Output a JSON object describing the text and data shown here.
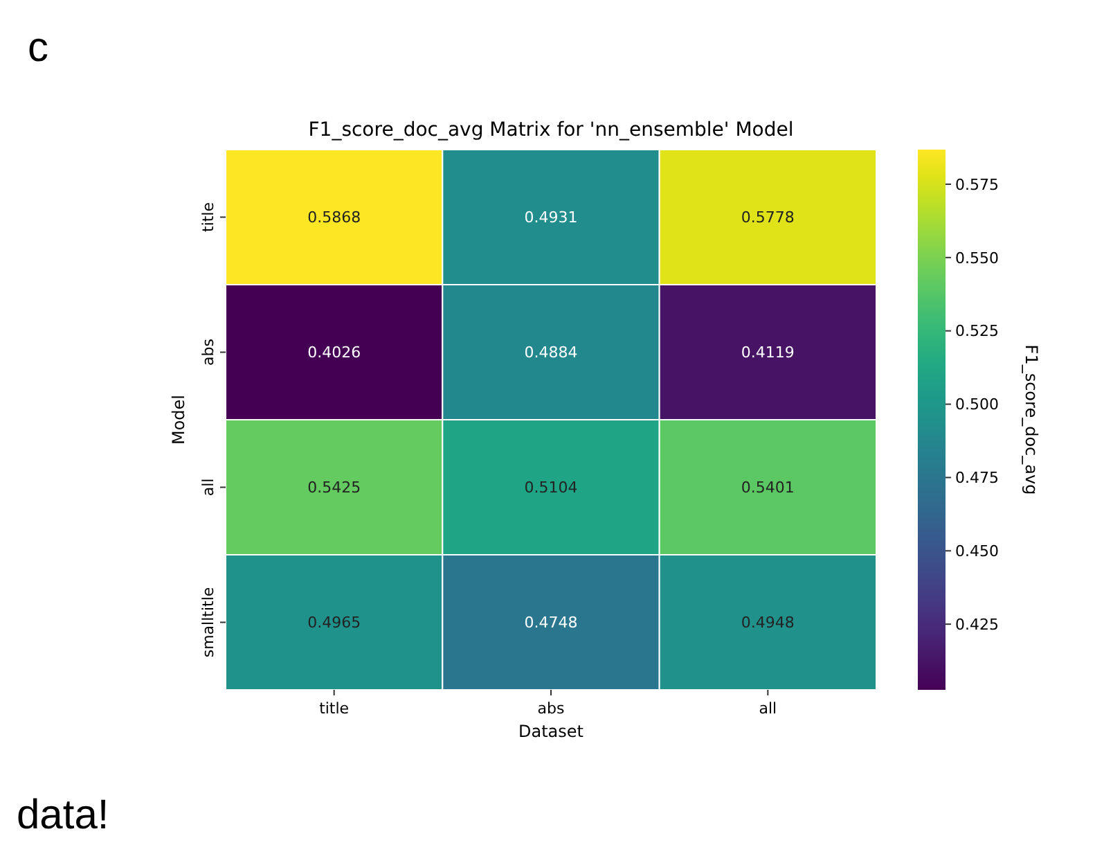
{
  "chart_data": {
    "type": "heatmap",
    "title": "F1_score_doc_avg Matrix for 'nn_ensemble' Model",
    "xlabel": "Dataset",
    "ylabel": "Model",
    "clabel": "F1_score_doc_avg",
    "categories": [
      "title",
      "abs",
      "all"
    ],
    "y_categories": [
      "title",
      "abs",
      "all",
      "smalltitle"
    ],
    "cells": [
      [
        0.5868,
        0.4931,
        0.5778
      ],
      [
        0.4026,
        0.4884,
        0.4119
      ],
      [
        0.5425,
        0.5104,
        0.5401
      ],
      [
        0.4965,
        0.4748,
        0.4948
      ]
    ],
    "data_labels": true,
    "clim": [
      0.4026,
      0.5868
    ],
    "cticks": [
      0.425,
      {
        "value": 0.45,
        "label": "0.450"
      },
      0.475,
      {
        "value": 0.5,
        "label": "0.500"
      },
      0.525,
      {
        "value": 0.55,
        "label": "0.550"
      },
      0.575
    ],
    "annotations": [
      "c",
      "data!"
    ]
  }
}
